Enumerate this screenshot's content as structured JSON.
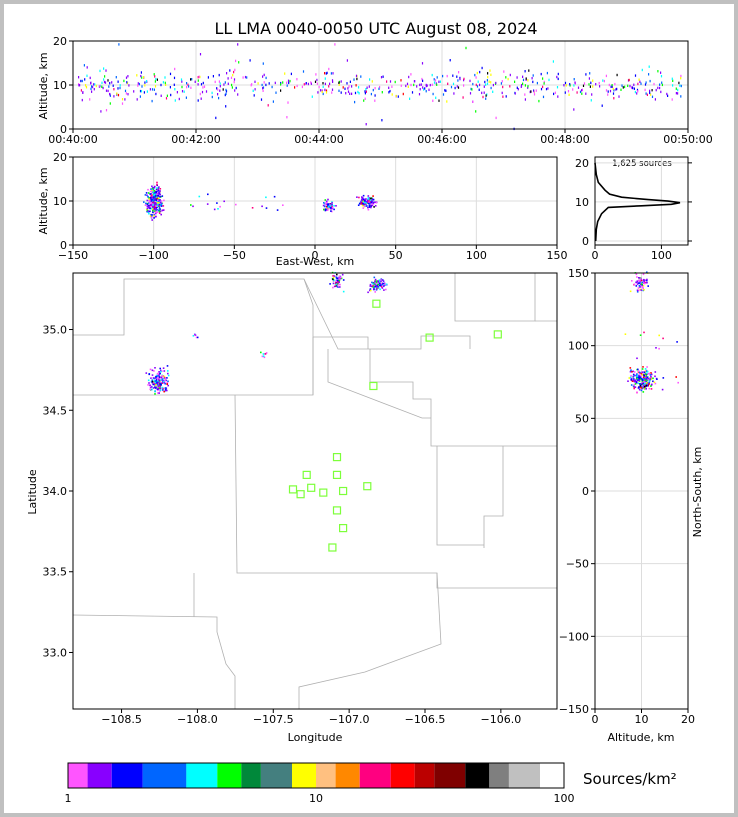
{
  "title": "LL LMA 0040-0050 UTC August 08, 2024",
  "colors": {
    "grid": "#dddddd",
    "station": "#7dff3a",
    "county": "#b0b0b0",
    "frame": "#000000"
  },
  "chart_data": [
    {
      "name": "time-height",
      "type": "scatter",
      "ylabel": "Altitude, km",
      "ylim": [
        0,
        20
      ],
      "xticks": [
        "00:40:00",
        "00:42:00",
        "00:44:00",
        "00:46:00",
        "00:48:00",
        "00:50:00"
      ],
      "yticks": [
        "0",
        "10",
        "20"
      ]
    },
    {
      "name": "ew-altitude",
      "type": "scatter",
      "xlabel": "East-West, km",
      "ylabel": "Altitude, km",
      "xlim": [
        -150,
        150
      ],
      "ylim": [
        0,
        20
      ],
      "xticks": [
        "−150",
        "−100",
        "−50",
        "0",
        "50",
        "100",
        "150"
      ],
      "yticks": [
        "0",
        "10",
        "20"
      ],
      "clusters": [
        {
          "x": -100,
          "alt": 10
        },
        {
          "x": 8,
          "alt": 9
        },
        {
          "x": 32,
          "alt": 10
        }
      ]
    },
    {
      "name": "altitude-histogram",
      "type": "line",
      "annotation": "1,625 sources",
      "xticks": [
        "0",
        "100"
      ],
      "yticks": [
        "0",
        "10",
        "20"
      ],
      "profile": [
        [
          20,
          0
        ],
        [
          17,
          2
        ],
        [
          15,
          5
        ],
        [
          13,
          15
        ],
        [
          12,
          22
        ],
        [
          11.2,
          40
        ],
        [
          10.6,
          80
        ],
        [
          10.2,
          110
        ],
        [
          9.8,
          128
        ],
        [
          9.4,
          115
        ],
        [
          9,
          70
        ],
        [
          8.6,
          20
        ],
        [
          7,
          10
        ],
        [
          5,
          4
        ],
        [
          3,
          2
        ],
        [
          0,
          1
        ]
      ]
    },
    {
      "name": "plan-view",
      "type": "scatter",
      "xlabel": "Longitude",
      "ylabel": "Latitude",
      "xlim": [
        -108.82,
        -105.63
      ],
      "ylim": [
        32.65,
        35.35
      ],
      "xticks": [
        "−108.5",
        "−108.0",
        "−107.5",
        "−107.0",
        "−106.5",
        "−106.0"
      ],
      "yticks": [
        "33.0",
        "33.5",
        "34.0",
        "34.5",
        "35.0"
      ],
      "stations": [
        {
          "lon": -107.08,
          "lat": 34.21
        },
        {
          "lon": -107.28,
          "lat": 34.1
        },
        {
          "lon": -107.08,
          "lat": 34.1
        },
        {
          "lon": -107.37,
          "lat": 34.01
        },
        {
          "lon": -107.25,
          "lat": 34.02
        },
        {
          "lon": -107.17,
          "lat": 33.99
        },
        {
          "lon": -107.04,
          "lat": 34.0
        },
        {
          "lon": -106.88,
          "lat": 34.03
        },
        {
          "lon": -107.32,
          "lat": 33.98
        },
        {
          "lon": -107.08,
          "lat": 33.88
        },
        {
          "lon": -107.04,
          "lat": 33.77
        },
        {
          "lon": -107.11,
          "lat": 33.65
        },
        {
          "lon": -106.84,
          "lat": 34.65
        },
        {
          "lon": -106.82,
          "lat": 35.16
        },
        {
          "lon": -106.47,
          "lat": 34.95
        },
        {
          "lon": -106.02,
          "lat": 34.97
        }
      ],
      "clusters": [
        {
          "lon": -108.26,
          "lat": 34.68
        },
        {
          "lon": -107.08,
          "lat": 35.3
        },
        {
          "lon": -106.82,
          "lat": 35.28
        },
        {
          "lon": -107.57,
          "lat": 34.85
        }
      ]
    },
    {
      "name": "ns-altitude",
      "type": "scatter",
      "xlabel": "Altitude, km",
      "ylabel": "North-South, km",
      "xlim": [
        0,
        20
      ],
      "ylim": [
        -150,
        150
      ],
      "xticks": [
        "0",
        "10",
        "20"
      ],
      "yticks": [
        "−150",
        "−100",
        "−50",
        "0",
        "50",
        "100",
        "150"
      ],
      "clusters": [
        {
          "alt": 10,
          "ns": 77
        },
        {
          "alt": 9.5,
          "ns": 144
        }
      ]
    }
  ],
  "colorbar": {
    "label": "Sources/km²",
    "tick_labels": [
      "1",
      "10",
      "100"
    ],
    "colors": [
      "#ff55ff",
      "#8800ff",
      "#0000ff",
      "#0066ff",
      "#00ffff",
      "#00ff00",
      "#00883a",
      "#447f7f",
      "#ffff00",
      "#ffc080",
      "#ff8800",
      "#ff0080",
      "#ff0000",
      "#bb0000",
      "#7f0000",
      "#000000",
      "#7f7f7f",
      "#c0c0c0",
      "#ffffff"
    ]
  }
}
